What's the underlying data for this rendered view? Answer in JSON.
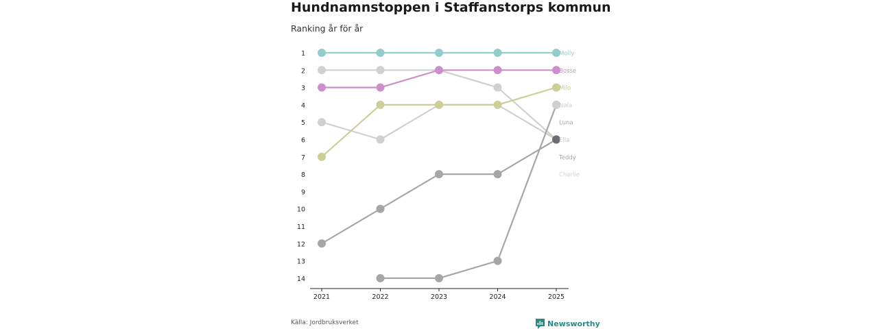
{
  "chart_data": {
    "type": "bump",
    "title": "Hundnamnstoppen i Staffanstorps kommun",
    "subtitle": "Ranking år för år",
    "x": [
      "2021",
      "2022",
      "2023",
      "2024",
      "2025"
    ],
    "ylim": [
      1,
      14
    ],
    "yticks": [
      "1",
      "2",
      "3",
      "4",
      "5",
      "6",
      "7",
      "8",
      "9",
      "10",
      "11",
      "12",
      "13",
      "14"
    ],
    "series": [
      {
        "name": "Charlie",
        "color": "#d0d0d0",
        "label_color": "#d2d2d2",
        "ranks": [
          5,
          6,
          4,
          4,
          6
        ]
      },
      {
        "name": "Teddy",
        "color": "#d0d0d0",
        "label_color": "#a6a6a6",
        "ranks": [
          2,
          2,
          2,
          3,
          6
        ]
      },
      {
        "name": "Luna",
        "color": "#a6a6a6",
        "label_color": "#a6a6a6",
        "ranks": [
          null,
          14,
          14,
          13,
          4
        ]
      },
      {
        "name": "Ella",
        "color": "#a6a6a6",
        "label_color": "#c8c8c8",
        "ranks": [
          12,
          10,
          8,
          8,
          6
        ]
      },
      {
        "name": "Nala",
        "color": "#d0d0d0",
        "label_color": "#c8c8c8",
        "ranks": [
          null,
          null,
          null,
          null,
          4
        ]
      },
      {
        "name": "Milo",
        "color": "#cdcd96",
        "label_color": "#c9c98f",
        "ranks": [
          7,
          4,
          4,
          4,
          3
        ]
      },
      {
        "name": "Bosse",
        "color": "#cc8fcc",
        "label_color": "#cc8fcc",
        "ranks": [
          3,
          3,
          2,
          2,
          2
        ]
      },
      {
        "name": "Molly",
        "color": "#93cccc",
        "label_color": "#93cccc",
        "ranks": [
          1,
          1,
          1,
          1,
          1
        ]
      }
    ],
    "end_label_order": [
      "Molly",
      "Bosse",
      "Milo",
      "Nala",
      "Luna",
      "Ella",
      "Teddy",
      "Charlie"
    ],
    "highlight_point": {
      "name": "Ella",
      "x": "2025",
      "rank": 6,
      "color": "#6d6d75"
    }
  },
  "footer": {
    "source": "Källa: Jordbruksverket",
    "brand": "Newsworthy",
    "brand_color": "#2a8a86"
  }
}
